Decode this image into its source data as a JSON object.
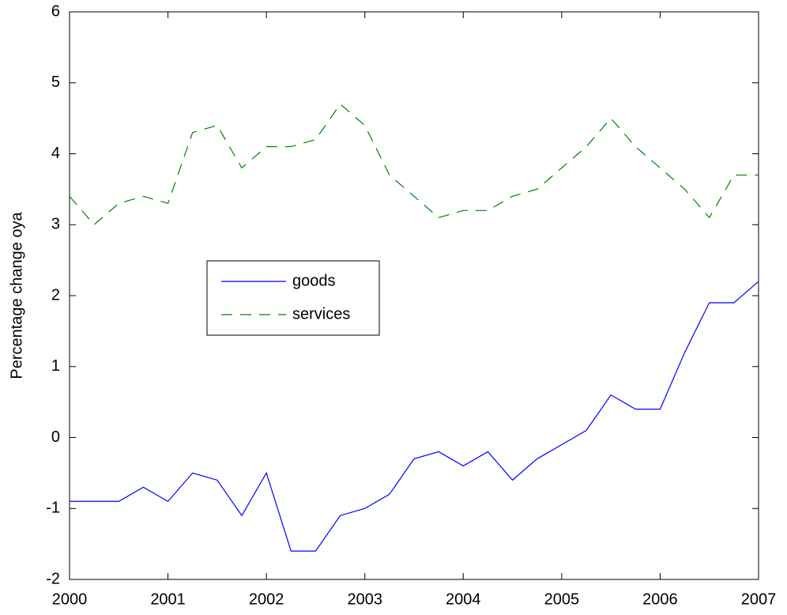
{
  "chart_data": {
    "type": "line",
    "y_label": "Percentage change oya",
    "x": [
      2000,
      2000.25,
      2000.5,
      2000.75,
      2001,
      2001.25,
      2001.5,
      2001.75,
      2002,
      2002.25,
      2002.5,
      2002.75,
      2003,
      2003.25,
      2003.5,
      2003.75,
      2004,
      2004.25,
      2004.5,
      2004.75,
      2005,
      2005.25,
      2005.5,
      2005.75,
      2006,
      2006.25,
      2006.5,
      2006.75,
      2007
    ],
    "series": [
      {
        "name": "goods",
        "color": "#0000ff",
        "style": "solid",
        "values": [
          -0.9,
          -0.9,
          -0.9,
          -0.7,
          -0.9,
          -0.5,
          -0.6,
          -1.1,
          -0.5,
          -1.6,
          -1.6,
          -1.1,
          -1.0,
          -0.8,
          -0.3,
          -0.2,
          -0.4,
          -0.2,
          -0.6,
          -0.3,
          -0.1,
          0.1,
          0.6,
          0.4,
          0.4,
          1.2,
          1.9,
          1.9,
          2.2
        ]
      },
      {
        "name": "services",
        "color": "#008000",
        "style": "dashed",
        "values": [
          3.4,
          3.0,
          3.3,
          3.4,
          3.3,
          4.3,
          4.4,
          3.8,
          4.1,
          4.1,
          4.2,
          4.7,
          4.4,
          3.7,
          3.4,
          3.1,
          3.2,
          3.2,
          3.4,
          3.5,
          3.8,
          4.1,
          4.5,
          4.1,
          3.8,
          3.5,
          3.1,
          3.7,
          3.7
        ]
      }
    ],
    "xlim": [
      2000,
      2007
    ],
    "xticks": [
      2000,
      2001,
      2002,
      2003,
      2004,
      2005,
      2006,
      2007
    ],
    "ylim": [
      -2,
      6
    ],
    "yticks": [
      -2,
      -1,
      0,
      1,
      2,
      3,
      4,
      5,
      6
    ],
    "legend": "center-left",
    "grid": false
  }
}
